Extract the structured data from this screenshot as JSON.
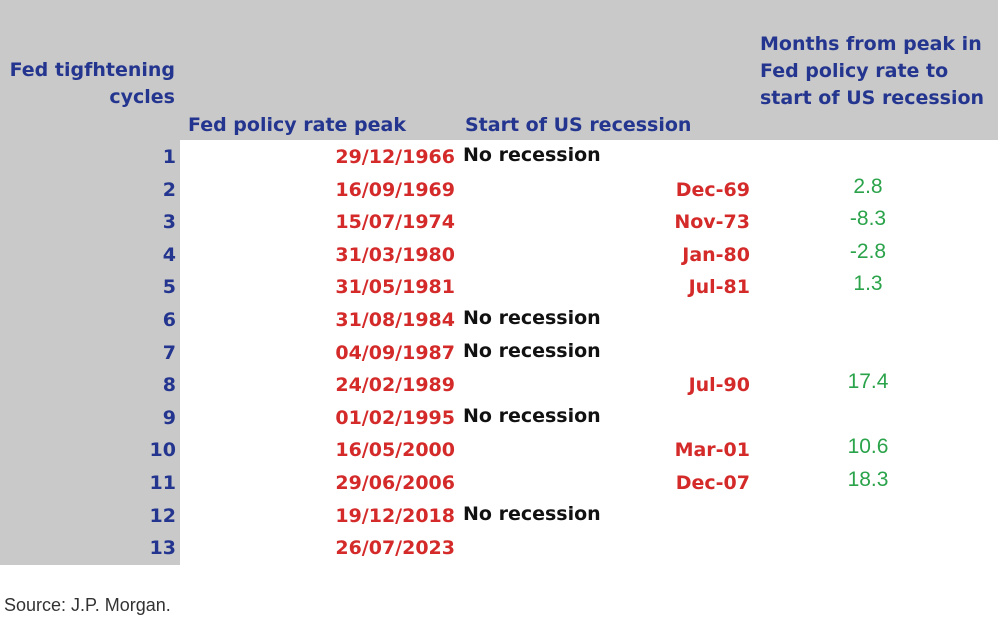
{
  "table": {
    "headers": [
      "Fed tigfhtening cycles",
      "Fed policy rate peak",
      "Start of US recession",
      "Months from peak in Fed policy rate to start of US recession"
    ],
    "rows": [
      [
        1,
        "29/12/1966",
        "No recession",
        null
      ],
      [
        2,
        "16/09/1969",
        "Dec-69",
        2.8
      ],
      [
        3,
        "15/07/1974",
        "Nov-73",
        -8.3
      ],
      [
        4,
        "31/03/1980",
        "Jan-80",
        -2.8
      ],
      [
        5,
        "31/05/1981",
        "Jul-81",
        1.3
      ],
      [
        6,
        "31/08/1984",
        "No recession",
        null
      ],
      [
        7,
        "04/09/1987",
        "No recession",
        null
      ],
      [
        8,
        "24/02/1989",
        "Jul-90",
        17.4
      ],
      [
        9,
        "01/02/1995",
        "No recession",
        null
      ],
      [
        10,
        "16/05/2000",
        "Mar-01",
        10.6
      ],
      [
        11,
        "29/06/2006",
        "Dec-07",
        18.3
      ],
      [
        12,
        "19/12/2018",
        "No recession",
        null
      ],
      [
        13,
        "26/07/2023",
        null,
        null
      ]
    ]
  },
  "footer": {
    "source": "Source: J.P. Morgan."
  }
}
